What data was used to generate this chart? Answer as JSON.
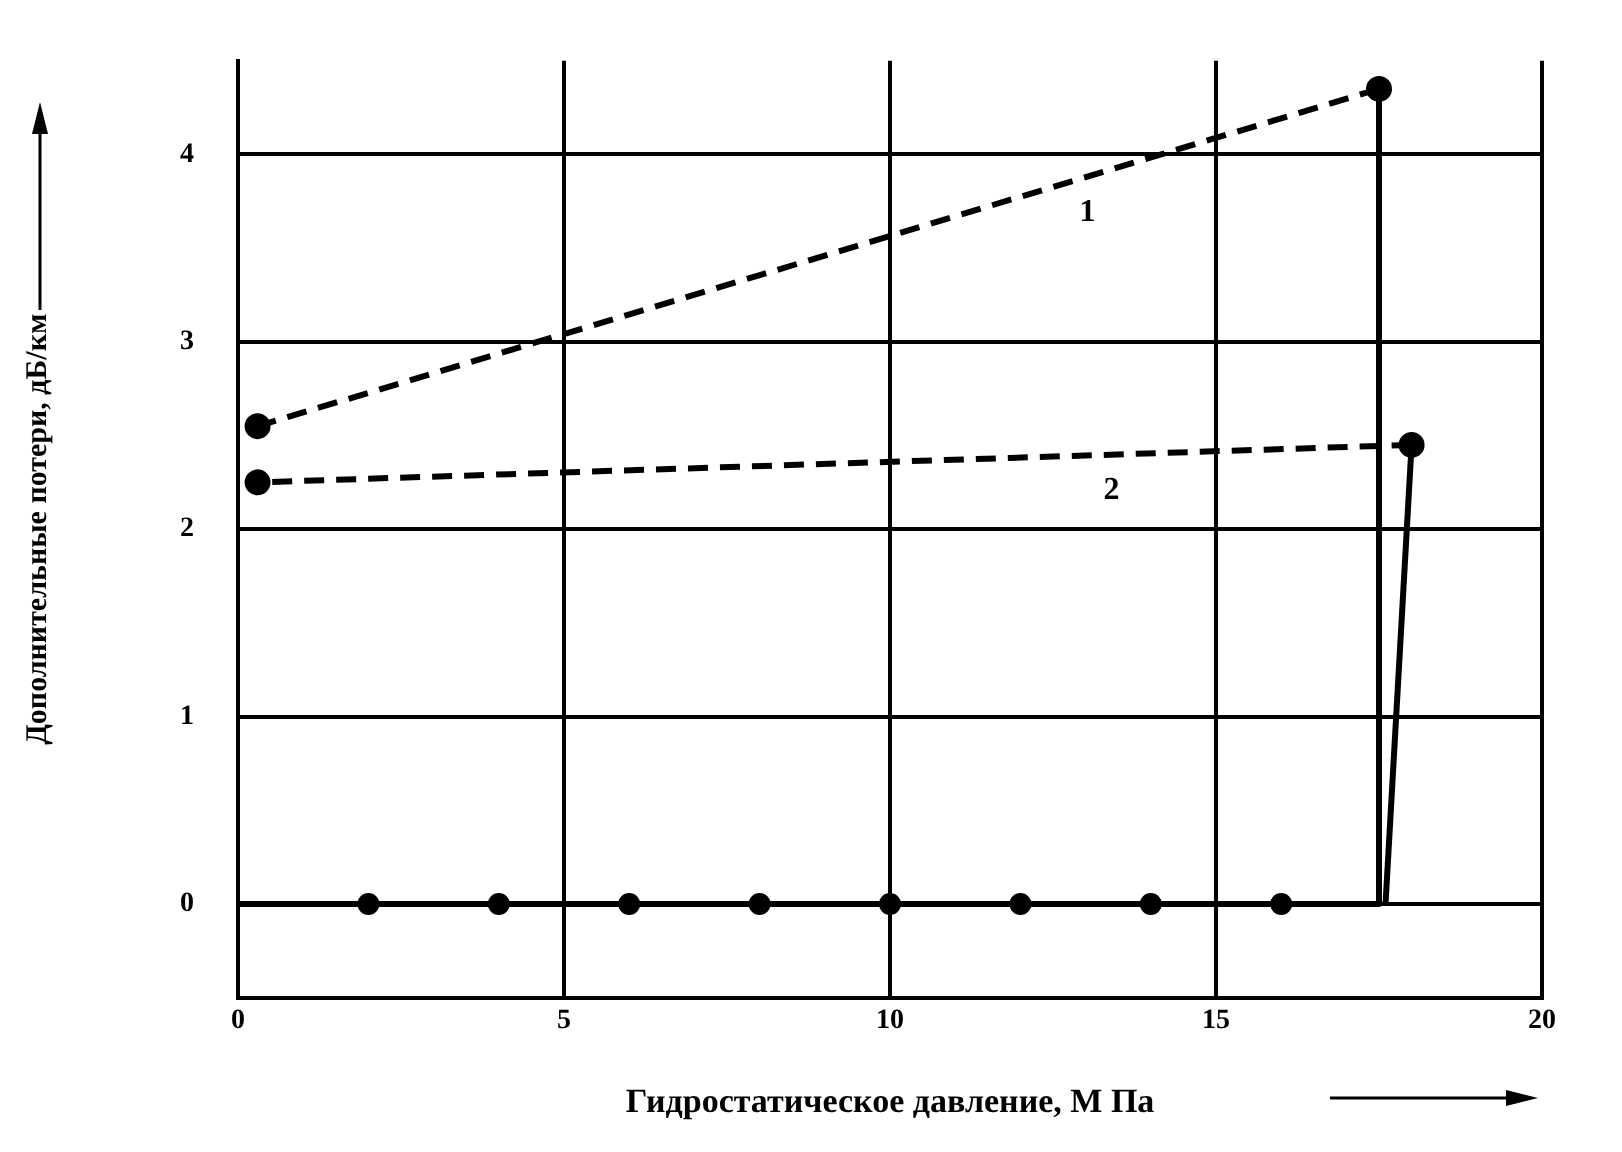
{
  "chart_data": {
    "type": "line",
    "xlabel": "Гидростатическое давление, М Па",
    "ylabel": "Дополнительные потери, дБ/км",
    "xlim": [
      0,
      20
    ],
    "xticks": [
      0,
      5,
      10,
      15,
      20
    ],
    "ylim": [
      -0.5,
      4.5
    ],
    "yticks": [
      0,
      1,
      2,
      3,
      4
    ],
    "grid": true,
    "legend": false,
    "series": [
      {
        "color": "#000000",
        "x": [
          0,
          17.5,
          17.5
        ],
        "values": [
          0,
          0,
          4.35
        ],
        "line_style": "solid"
      },
      {
        "type": "scatter",
        "color": "#000000",
        "x": [
          2,
          4,
          6,
          8,
          10,
          12,
          14,
          16
        ],
        "values": [
          0,
          0,
          0,
          0,
          0,
          0,
          0,
          0
        ],
        "marker": "circle"
      },
      {
        "color": "#000000",
        "x": [
          17.6,
          18
        ],
        "values": [
          0,
          2.45
        ],
        "line_style": "solid"
      },
      {
        "name": "1",
        "color": "#000000",
        "x": [
          17.5,
          0.3
        ],
        "values": [
          4.35,
          2.55
        ],
        "marker": "circle",
        "line_style": "dashed"
      },
      {
        "name": "2",
        "color": "#000000",
        "x": [
          18,
          0.3
        ],
        "values": [
          2.45,
          2.25
        ],
        "marker": "circle",
        "line_style": "dashed"
      }
    ]
  }
}
